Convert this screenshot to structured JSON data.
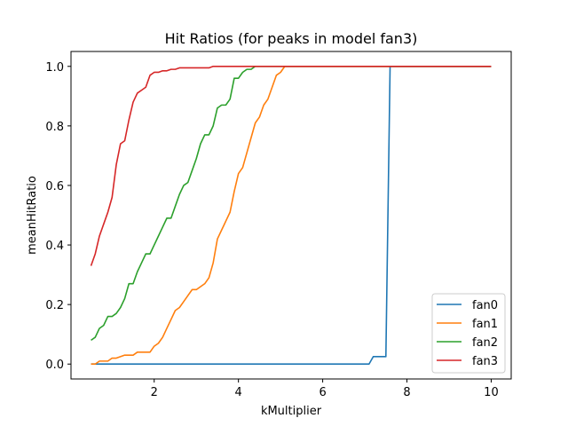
{
  "chart_data": {
    "type": "line",
    "title": "Hit Ratios (for peaks in model fan3)",
    "xlabel": "kMultiplier",
    "ylabel": "meanHitRatio",
    "xlim": [
      0.025,
      10.475
    ],
    "ylim": [
      -0.05,
      1.05
    ],
    "xticks": [
      2,
      4,
      6,
      8,
      10
    ],
    "xtick_labels": [
      "2",
      "4",
      "6",
      "8",
      "10"
    ],
    "yticks": [
      0.0,
      0.2,
      0.4,
      0.6,
      0.8,
      1.0
    ],
    "ytick_labels": [
      "0.0",
      "0.2",
      "0.4",
      "0.6",
      "0.8",
      "1.0"
    ],
    "grid": false,
    "legend_position": "lower-right",
    "series": [
      {
        "name": "fan0",
        "color": "#1f77b4",
        "x": [
          0.5,
          7.1,
          7.2,
          7.5,
          7.6,
          10.0
        ],
        "y": [
          0.0,
          0.0,
          0.025,
          0.025,
          1.0,
          1.0
        ]
      },
      {
        "name": "fan1",
        "color": "#ff7f0e",
        "x": [
          0.5,
          0.6,
          0.7,
          0.9,
          1.0,
          1.1,
          1.3,
          1.5,
          1.6,
          1.7,
          1.9,
          2.0,
          2.1,
          2.2,
          2.3,
          2.4,
          2.5,
          2.6,
          2.7,
          2.8,
          2.9,
          3.0,
          3.1,
          3.2,
          3.3,
          3.4,
          3.5,
          3.6,
          3.7,
          3.8,
          3.9,
          4.0,
          4.1,
          4.2,
          4.3,
          4.4,
          4.5,
          4.6,
          4.7,
          4.8,
          4.9,
          5.0,
          5.1,
          5.2,
          10.0
        ],
        "y": [
          0.0,
          0.0,
          0.01,
          0.01,
          0.02,
          0.02,
          0.03,
          0.03,
          0.04,
          0.04,
          0.04,
          0.06,
          0.07,
          0.09,
          0.12,
          0.15,
          0.18,
          0.19,
          0.21,
          0.23,
          0.25,
          0.25,
          0.26,
          0.27,
          0.29,
          0.34,
          0.42,
          0.45,
          0.48,
          0.51,
          0.58,
          0.64,
          0.66,
          0.71,
          0.76,
          0.81,
          0.83,
          0.87,
          0.89,
          0.93,
          0.97,
          0.98,
          1.0,
          1.0,
          1.0
        ]
      },
      {
        "name": "fan2",
        "color": "#2ca02c",
        "x": [
          0.5,
          0.6,
          0.7,
          0.8,
          0.9,
          1.0,
          1.1,
          1.2,
          1.3,
          1.4,
          1.5,
          1.6,
          1.7,
          1.8,
          1.9,
          2.0,
          2.1,
          2.2,
          2.3,
          2.4,
          2.5,
          2.6,
          2.7,
          2.8,
          2.9,
          3.0,
          3.1,
          3.2,
          3.3,
          3.4,
          3.5,
          3.6,
          3.7,
          3.8,
          3.9,
          4.0,
          4.1,
          4.2,
          4.3,
          4.4,
          4.5,
          10.0
        ],
        "y": [
          0.08,
          0.09,
          0.12,
          0.13,
          0.16,
          0.16,
          0.17,
          0.19,
          0.22,
          0.27,
          0.27,
          0.31,
          0.34,
          0.37,
          0.37,
          0.4,
          0.43,
          0.46,
          0.49,
          0.49,
          0.53,
          0.57,
          0.6,
          0.61,
          0.65,
          0.69,
          0.74,
          0.77,
          0.77,
          0.8,
          0.86,
          0.87,
          0.87,
          0.89,
          0.96,
          0.96,
          0.98,
          0.99,
          0.99,
          1.0,
          1.0,
          1.0
        ]
      },
      {
        "name": "fan3",
        "color": "#d62728",
        "x": [
          0.5,
          0.6,
          0.7,
          0.8,
          0.9,
          1.0,
          1.1,
          1.2,
          1.3,
          1.4,
          1.5,
          1.6,
          1.7,
          1.8,
          1.9,
          2.0,
          2.1,
          2.2,
          2.3,
          2.4,
          2.5,
          2.6,
          2.7,
          2.8,
          2.9,
          3.0,
          3.1,
          3.2,
          3.3,
          3.4,
          3.5,
          10.0
        ],
        "y": [
          0.33,
          0.37,
          0.43,
          0.47,
          0.51,
          0.56,
          0.67,
          0.74,
          0.75,
          0.82,
          0.88,
          0.91,
          0.92,
          0.93,
          0.97,
          0.98,
          0.98,
          0.985,
          0.985,
          0.99,
          0.99,
          0.995,
          0.995,
          0.995,
          0.995,
          0.995,
          0.995,
          0.995,
          0.995,
          1.0,
          1.0,
          1.0
        ]
      }
    ]
  }
}
